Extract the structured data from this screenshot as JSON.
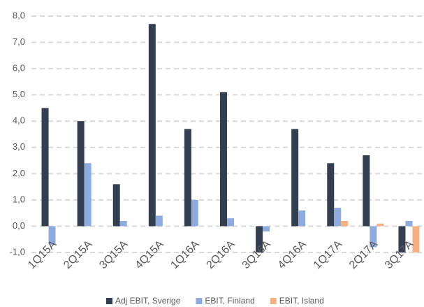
{
  "chart_data": {
    "type": "bar",
    "categories": [
      "1Q15A",
      "2Q15A",
      "3Q15A",
      "4Q15A",
      "1Q16A",
      "2Q16A",
      "3Q16A",
      "4Q16A",
      "1Q17A",
      "2Q17A",
      "3Q17A"
    ],
    "series": [
      {
        "name": "Adj EBIT, Sverige",
        "color": "#333f50",
        "values": [
          4.5,
          4.0,
          1.6,
          7.7,
          3.7,
          5.1,
          -1.0,
          3.7,
          2.4,
          2.7,
          -1.0
        ]
      },
      {
        "name": "EBIT, Finland",
        "color": "#8faadc",
        "values": [
          -0.7,
          2.4,
          0.2,
          0.4,
          1.0,
          0.3,
          -0.2,
          0.6,
          0.7,
          -0.8,
          0.2
        ]
      },
      {
        "name": "EBIT, Island",
        "color": "#f4b183",
        "values": [
          null,
          null,
          null,
          null,
          null,
          null,
          null,
          null,
          0.2,
          0.1,
          -1.0
        ]
      }
    ],
    "ylim": [
      -1,
      8
    ],
    "yticks": [
      {
        "value": -1,
        "label": "-1,0"
      },
      {
        "value": 0,
        "label": "0,0"
      },
      {
        "value": 1,
        "label": "1,0"
      },
      {
        "value": 2,
        "label": "2,0"
      },
      {
        "value": 3,
        "label": "3,0"
      },
      {
        "value": 4,
        "label": "4,0"
      },
      {
        "value": 5,
        "label": "5,0"
      },
      {
        "value": 6,
        "label": "6,0"
      },
      {
        "value": 7,
        "label": "7,0"
      },
      {
        "value": 8,
        "label": "8,0"
      }
    ],
    "grid": true,
    "legend": "bottom"
  }
}
